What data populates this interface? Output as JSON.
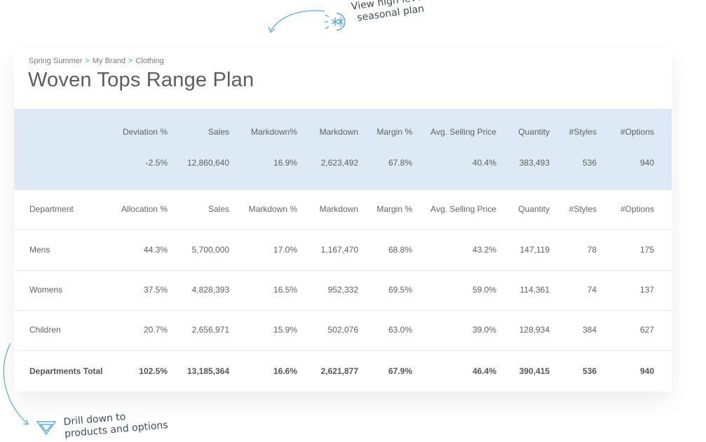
{
  "annotations": {
    "top_line1": "View high level",
    "top_line2": "seasonal plan",
    "bottom_line1": "Drill down to",
    "bottom_line2": "products and options"
  },
  "breadcrumb": [
    "Spring Summer",
    "My Brand",
    "Clothing"
  ],
  "page_title": "Woven Tops Range Plan",
  "summary": {
    "headers": [
      "Deviation %",
      "Sales",
      "Markdown%",
      "Markdown",
      "Margin %",
      "Avg. Selling Price",
      "Quantity",
      "#Styles",
      "#Options"
    ],
    "values": [
      "-2.5%",
      "12,860,640",
      "16.9%",
      "2,623,492",
      "67.8%",
      "40.4%",
      "383,493",
      "536",
      "940"
    ]
  },
  "table": {
    "headers": [
      "Department",
      "Allocation %",
      "Sales",
      "Markdown %",
      "Markdown",
      "Margin %",
      "Avg. Selling Price",
      "Quantity",
      "#Styles",
      "#Options"
    ],
    "rows": [
      [
        "Mens",
        "44.3%",
        "5,700,000",
        "17.0%",
        "1,167,470",
        "68.8%",
        "43.2%",
        "147,119",
        "78",
        "175"
      ],
      [
        "Womens",
        "37.5%",
        "4,828,393",
        "16.5%",
        "952,332",
        "69.5%",
        "59.0%",
        "114,361",
        "74",
        "137"
      ],
      [
        "Children",
        "20.7%",
        "2,656,971",
        "15.9%",
        "502,076",
        "63.0%",
        "39.0%",
        "128,934",
        "384",
        "627"
      ]
    ],
    "total": [
      "Departments Total",
      "102.5%",
      "13,185,364",
      "16.6%",
      "2,621,877",
      "67.9%",
      "46.4%",
      "390,415",
      "536",
      "940"
    ]
  },
  "colors": {
    "summary_bg": "#dde9f5",
    "accent": "#4da0d8",
    "annotation_line": "#5aaee0"
  }
}
